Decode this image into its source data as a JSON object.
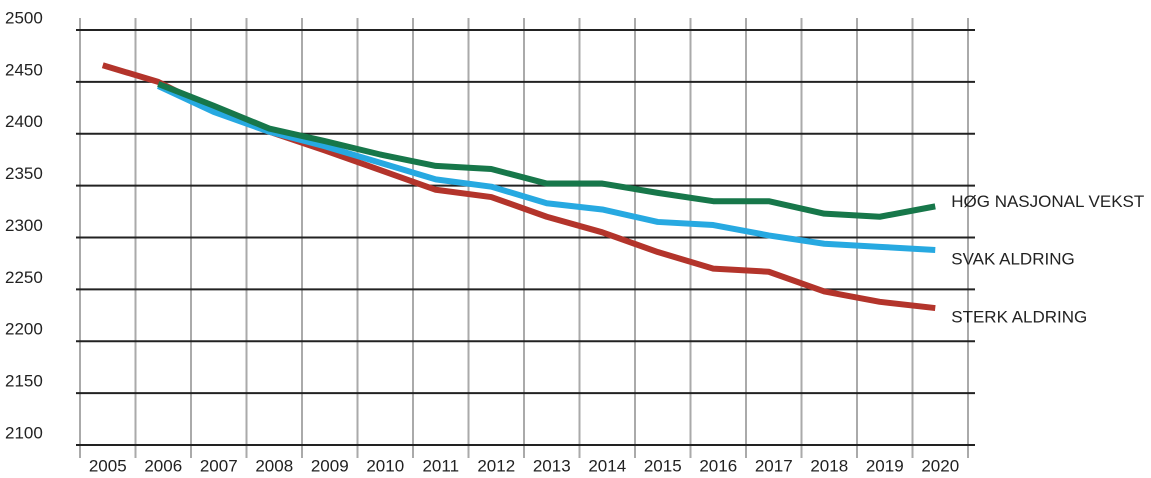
{
  "chart_data": {
    "type": "line",
    "categories": [
      "2005",
      "2006",
      "2007",
      "2008",
      "2009",
      "2010",
      "2011",
      "2012",
      "2013",
      "2014",
      "2015",
      "2016",
      "2017",
      "2018",
      "2019",
      "2020"
    ],
    "series": [
      {
        "name": "HØG NASJONAL VEKST",
        "color": "#17774a",
        "values": [
          null,
          2448,
          2427,
          2405,
          2393,
          2380,
          2369,
          2366,
          2352,
          2352,
          2343,
          2335,
          2335,
          2323,
          2320,
          2330
        ]
      },
      {
        "name": "SVAK ALDRING",
        "color": "#27a9e1",
        "values": [
          null,
          2446,
          2421,
          2402,
          2388,
          2372,
          2356,
          2349,
          2333,
          2327,
          2315,
          2312,
          2302,
          2294,
          2291,
          2288
        ]
      },
      {
        "name": "STERK ALDRING",
        "color": "#b3342b",
        "values": [
          2466,
          2450,
          2423,
          2402,
          2384,
          2365,
          2346,
          2339,
          2320,
          2305,
          2286,
          2270,
          2267,
          2248,
          2238,
          2232
        ]
      }
    ],
    "ylim": [
      2100,
      2500
    ],
    "yticks": [
      2100,
      2150,
      2200,
      2250,
      2300,
      2350,
      2400,
      2450,
      2500
    ],
    "grid": true
  }
}
